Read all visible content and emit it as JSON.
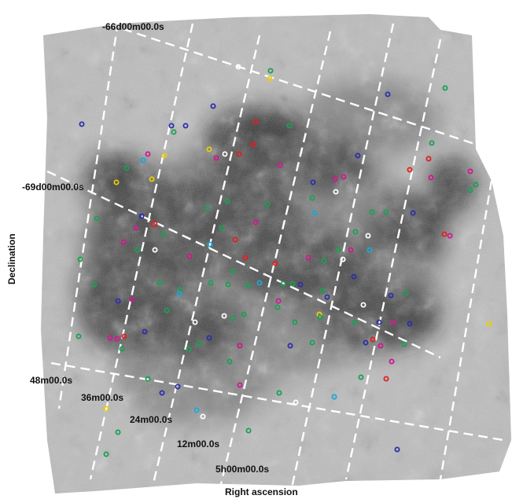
{
  "figure": {
    "dec_labels": [
      "-66d00m00.0s",
      "-69d00m00.0s"
    ],
    "ra_labels": [
      "48m00.0s",
      "36m00.0s",
      "24m00.0s",
      "12m00.0s",
      "5h00m00.0s"
    ],
    "xlabel": "Right ascension",
    "ylabel": "Declination",
    "marker_colors": {
      "blue": "#2e2eaa",
      "green": "#1aa052",
      "magenta": "#d01890",
      "yellow": "#e8d000",
      "red": "#e02020",
      "cyan": "#1aa8d8",
      "white": "#ffffff"
    }
  }
}
